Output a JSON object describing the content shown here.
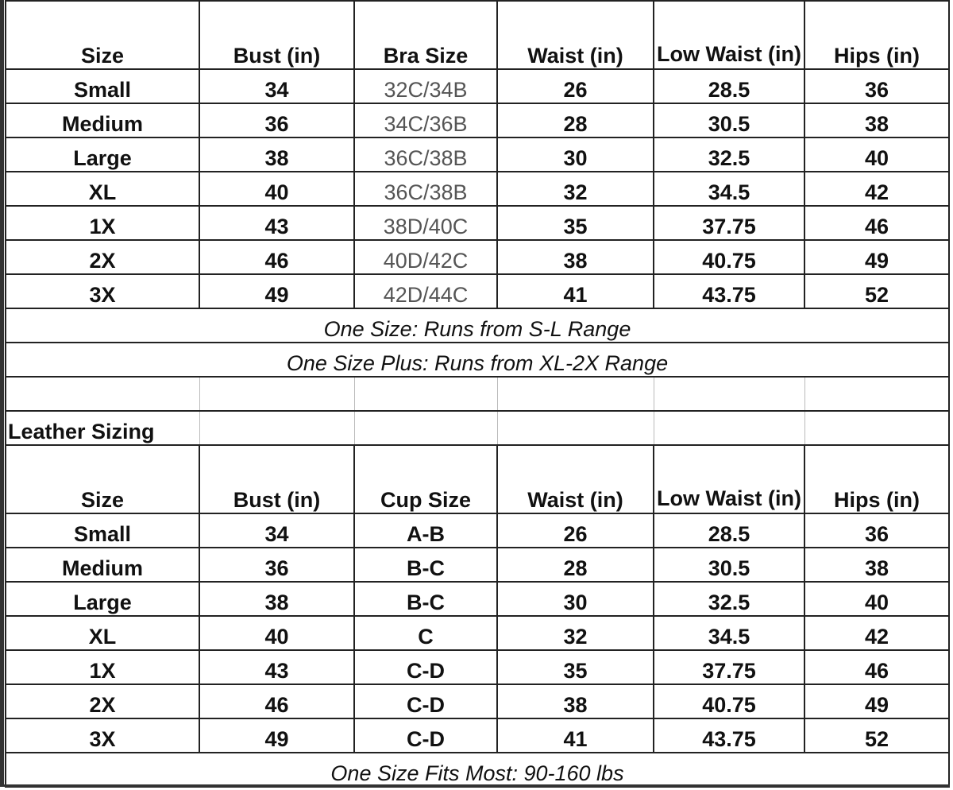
{
  "table1": {
    "headers": [
      "Size",
      "Bust (in)",
      "Bra Size",
      "Waist (in)",
      "Low Waist (in)",
      "Hips (in)"
    ],
    "rows": [
      [
        "Small",
        "34",
        "32C/34B",
        "26",
        "28.5",
        "36"
      ],
      [
        "Medium",
        "36",
        "34C/36B",
        "28",
        "30.5",
        "38"
      ],
      [
        "Large",
        "38",
        "36C/38B",
        "30",
        "32.5",
        "40"
      ],
      [
        "XL",
        "40",
        "36C/38B",
        "32",
        "34.5",
        "42"
      ],
      [
        "1X",
        "43",
        "38D/40C",
        "35",
        "37.75",
        "46"
      ],
      [
        "2X",
        "46",
        "40D/42C",
        "38",
        "40.75",
        "49"
      ],
      [
        "3X",
        "49",
        "42D/44C",
        "41",
        "43.75",
        "52"
      ]
    ],
    "notes": [
      "One Size: Runs from S-L Range",
      "One Size Plus: Runs from XL-2X Range"
    ]
  },
  "table2": {
    "title": "Leather Sizing",
    "headers": [
      "Size",
      "Bust (in)",
      "Cup Size",
      "Waist (in)",
      "Low Waist (in)",
      "Hips (in)"
    ],
    "rows": [
      [
        "Small",
        "34",
        "A-B",
        "26",
        "28.5",
        "36"
      ],
      [
        "Medium",
        "36",
        "B-C",
        "28",
        "30.5",
        "38"
      ],
      [
        "Large",
        "38",
        "B-C",
        "30",
        "32.5",
        "40"
      ],
      [
        "XL",
        "40",
        "C",
        "32",
        "34.5",
        "42"
      ],
      [
        "1X",
        "43",
        "C-D",
        "35",
        "37.75",
        "46"
      ],
      [
        "2X",
        "46",
        "C-D",
        "38",
        "40.75",
        "49"
      ],
      [
        "3X",
        "49",
        "C-D",
        "41",
        "43.75",
        "52"
      ]
    ],
    "notes": [
      "One Size Fits Most: 90-160 lbs"
    ]
  }
}
